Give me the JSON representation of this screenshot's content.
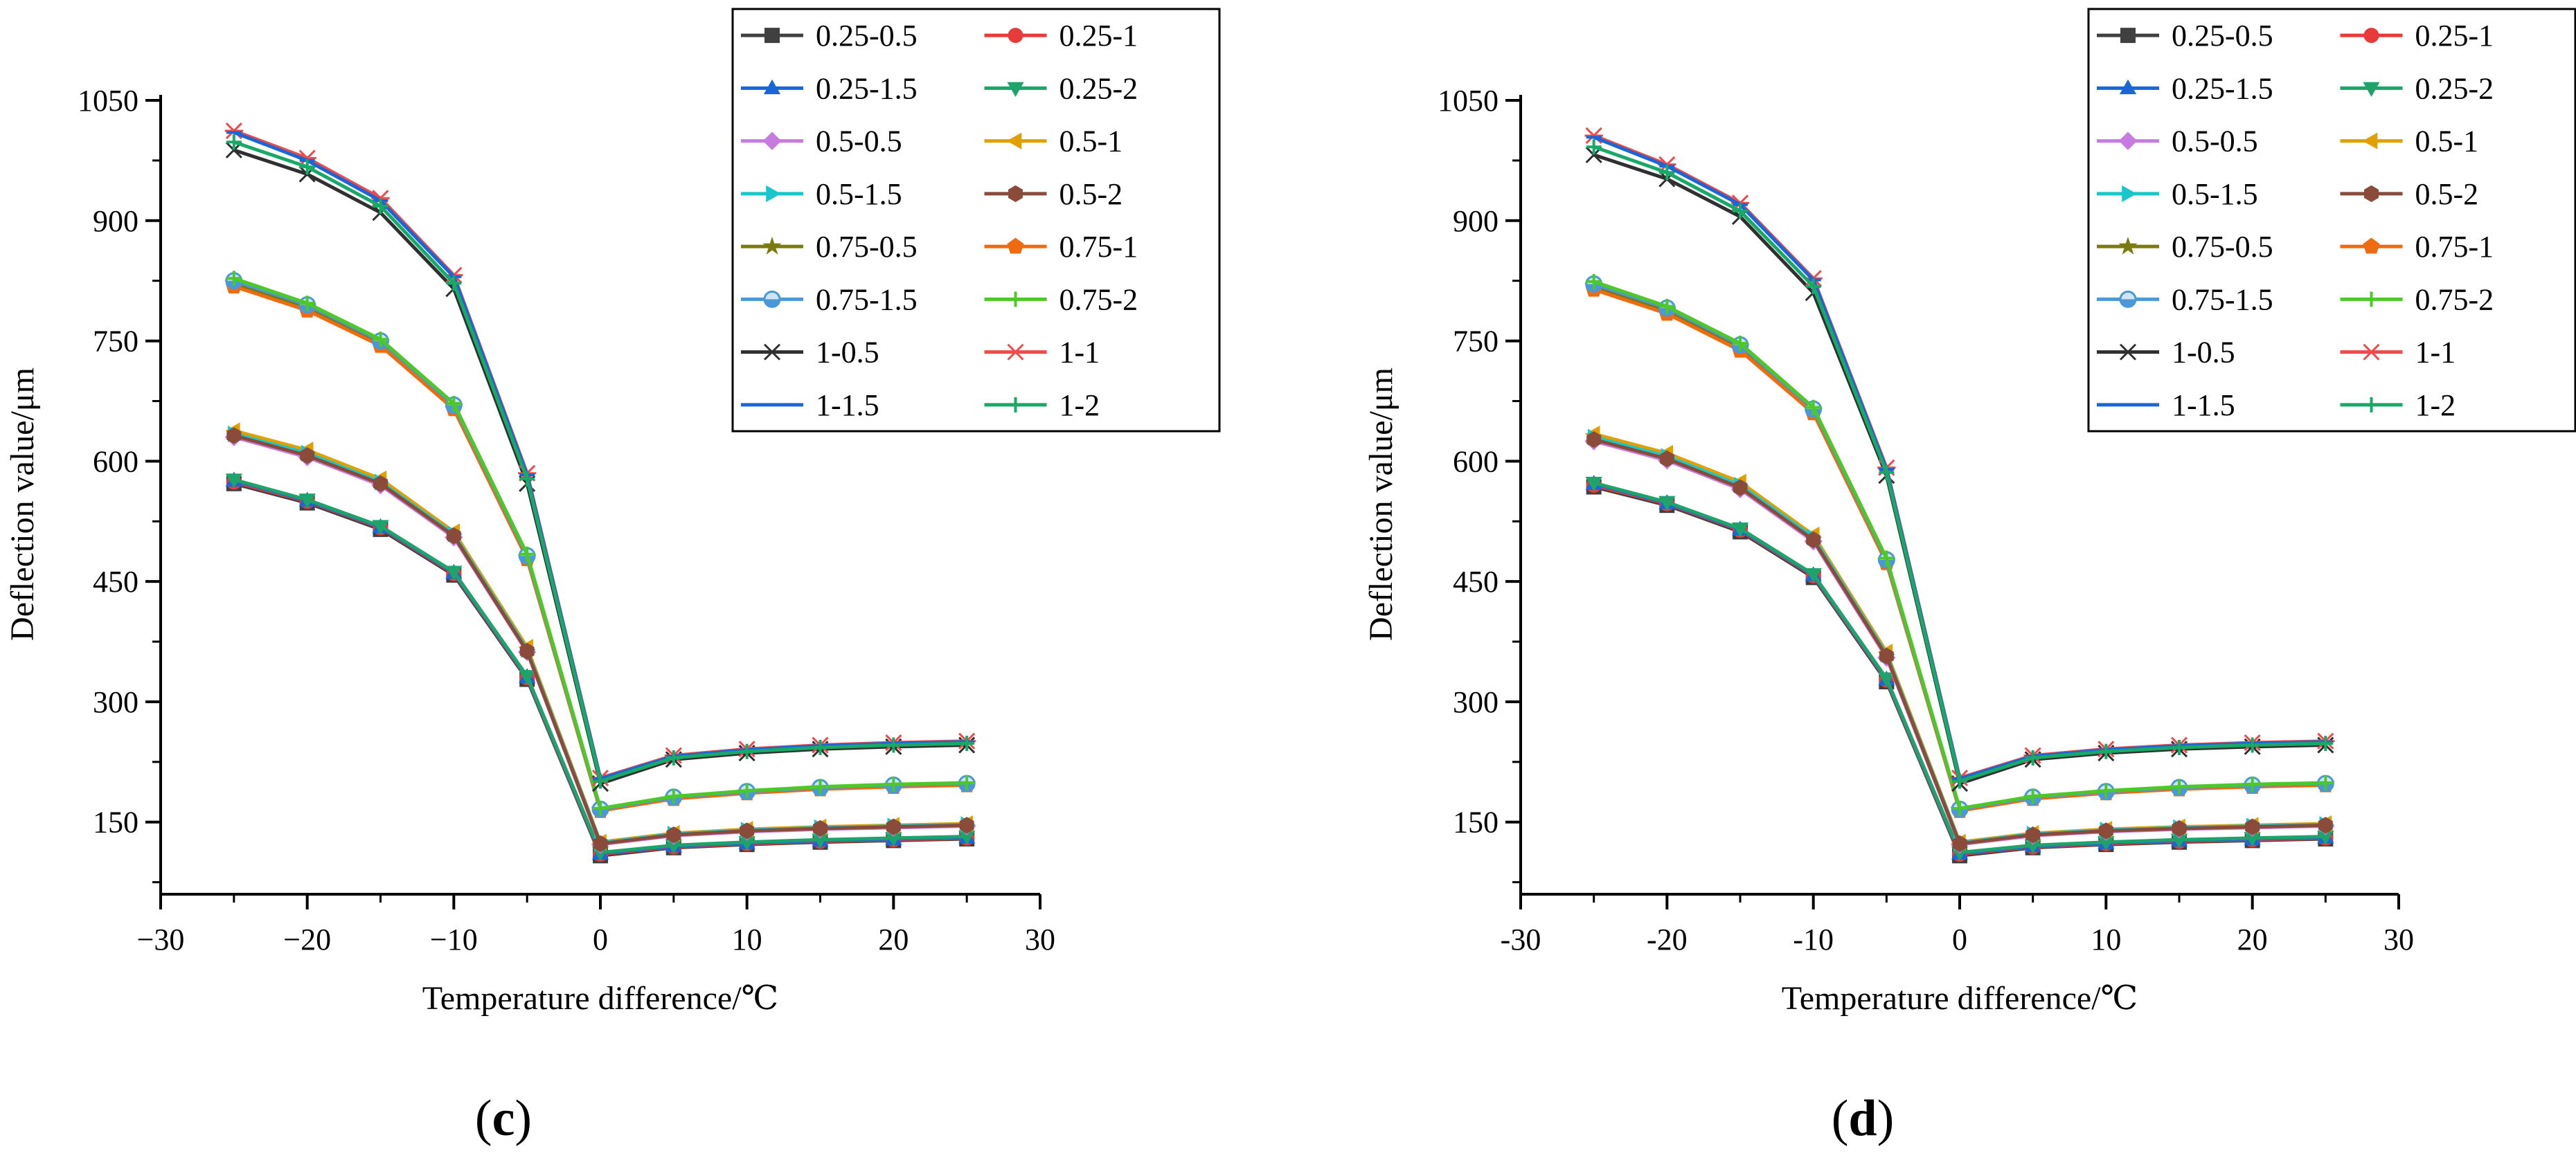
{
  "figure": {
    "panels": [
      "(c)",
      "(d)"
    ]
  },
  "styles": {
    "0.25-0.5": {
      "color": "#404040",
      "marker": "square"
    },
    "0.25-1": {
      "color": "#e8393b",
      "marker": "circle"
    },
    "0.25-1.5": {
      "color": "#1a66d8",
      "marker": "triangle-up"
    },
    "0.25-2": {
      "color": "#1ea36a",
      "marker": "triangle-down"
    },
    "0.5-0.5": {
      "color": "#c77be0",
      "marker": "diamond"
    },
    "0.5-1": {
      "color": "#e0a000",
      "marker": "triangle-left"
    },
    "0.5-1.5": {
      "color": "#18c6cc",
      "marker": "triangle-right"
    },
    "0.5-2": {
      "color": "#8b4b3a",
      "marker": "hexagon"
    },
    "0.75-0.5": {
      "color": "#7a7a10",
      "marker": "star"
    },
    "0.75-1": {
      "color": "#f06a10",
      "marker": "pentagon"
    },
    "0.75-1.5": {
      "color": "#4a98d8",
      "marker": "half-circle"
    },
    "0.75-2": {
      "color": "#4cc928",
      "marker": "plus"
    },
    "1-0.5": {
      "color": "#303030",
      "marker": "x"
    },
    "1-1": {
      "color": "#f04a4a",
      "marker": "asterisk"
    },
    "1-1.5": {
      "color": "#1a66d8",
      "marker": "dash"
    },
    "1-2": {
      "color": "#18a868",
      "marker": "plus"
    }
  },
  "chart_data": [
    {
      "type": "line",
      "panel_label": "(c)",
      "title": "",
      "xlabel": "Temperature difference/℃",
      "ylabel": "Deflection value/μm",
      "xlim": [
        -30,
        30
      ],
      "ylim": [
        60,
        1050
      ],
      "xticks": [
        -30,
        -20,
        -10,
        0,
        10,
        20,
        30
      ],
      "xtick_labels": [
        "−30",
        "−20",
        "−10",
        "0",
        "10",
        "20",
        "30"
      ],
      "yticks": [
        150,
        300,
        450,
        600,
        750,
        900,
        1050
      ],
      "ytick_labels": [
        "150",
        "300",
        "450",
        "600",
        "750",
        "900",
        "1050"
      ],
      "grid": false,
      "legend_position": "top-right",
      "x": [
        -25,
        -20,
        -15,
        -10,
        -5,
        0,
        5,
        10,
        15,
        20,
        25
      ],
      "series": [
        {
          "name": "0.25-0.5",
          "values": [
            572,
            548,
            515,
            458,
            328,
            108,
            118,
            122,
            125,
            127,
            129
          ]
        },
        {
          "name": "0.25-1",
          "values": [
            574,
            550,
            517,
            460,
            330,
            110,
            119,
            123,
            126,
            128,
            130
          ]
        },
        {
          "name": "0.25-1.5",
          "values": [
            576,
            551,
            518,
            461,
            331,
            111,
            120,
            124,
            127,
            129,
            131
          ]
        },
        {
          "name": "0.25-2",
          "values": [
            577,
            552,
            519,
            462,
            332,
            112,
            121,
            125,
            128,
            130,
            132
          ]
        },
        {
          "name": "0.5-0.5",
          "values": [
            630,
            605,
            570,
            505,
            362,
            122,
            133,
            138,
            141,
            143,
            145
          ]
        },
        {
          "name": "0.5-1",
          "values": [
            638,
            614,
            578,
            512,
            368,
            125,
            136,
            141,
            144,
            146,
            148
          ]
        },
        {
          "name": "0.5-1.5",
          "values": [
            634,
            610,
            574,
            509,
            365,
            124,
            135,
            140,
            143,
            145,
            147
          ]
        },
        {
          "name": "0.5-2",
          "values": [
            632,
            607,
            572,
            507,
            363,
            123,
            134,
            139,
            142,
            144,
            146
          ]
        },
        {
          "name": "0.75-0.5",
          "values": [
            822,
            792,
            748,
            668,
            480,
            165,
            180,
            187,
            192,
            195,
            197
          ]
        },
        {
          "name": "0.75-1",
          "values": [
            818,
            788,
            744,
            665,
            478,
            164,
            179,
            186,
            191,
            194,
            196
          ]
        },
        {
          "name": "0.75-1.5",
          "values": [
            825,
            795,
            750,
            670,
            482,
            166,
            181,
            188,
            193,
            196,
            198
          ]
        },
        {
          "name": "0.75-2",
          "values": [
            828,
            797,
            752,
            672,
            484,
            167,
            182,
            189,
            194,
            197,
            199
          ]
        },
        {
          "name": "1-0.5",
          "values": [
            988,
            958,
            910,
            815,
            572,
            198,
            228,
            236,
            241,
            244,
            246
          ]
        },
        {
          "name": "1-1",
          "values": [
            1012,
            978,
            928,
            832,
            585,
            205,
            233,
            241,
            246,
            249,
            251
          ]
        },
        {
          "name": "1-1.5",
          "values": [
            1010,
            975,
            925,
            830,
            583,
            204,
            232,
            240,
            245,
            248,
            250
          ]
        },
        {
          "name": "1-2",
          "values": [
            998,
            967,
            918,
            822,
            578,
            201,
            230,
            238,
            243,
            246,
            248
          ]
        }
      ]
    },
    {
      "type": "line",
      "panel_label": "(d)",
      "title": "",
      "xlabel": "Temperature difference/℃",
      "ylabel": "Deflection value/μm",
      "xlim": [
        -30,
        30
      ],
      "ylim": [
        60,
        1050
      ],
      "xticks": [
        -30,
        -20,
        -10,
        0,
        10,
        20,
        30
      ],
      "xtick_labels": [
        "-30",
        "-20",
        "-10",
        "0",
        "10",
        "20",
        "30"
      ],
      "yticks": [
        150,
        300,
        450,
        600,
        750,
        900,
        1050
      ],
      "ytick_labels": [
        "150",
        "300",
        "450",
        "600",
        "750",
        "900",
        "1050"
      ],
      "grid": false,
      "legend_position": "top-right",
      "x": [
        -25,
        -20,
        -15,
        -10,
        -5,
        0,
        5,
        10,
        15,
        20,
        25
      ],
      "series": [
        {
          "name": "0.25-0.5",
          "values": [
            568,
            545,
            512,
            455,
            325,
            108,
            118,
            122,
            125,
            127,
            129
          ]
        },
        {
          "name": "0.25-1",
          "values": [
            570,
            547,
            514,
            457,
            327,
            110,
            119,
            123,
            126,
            128,
            130
          ]
        },
        {
          "name": "0.25-1.5",
          "values": [
            572,
            548,
            515,
            458,
            328,
            111,
            120,
            124,
            127,
            129,
            131
          ]
        },
        {
          "name": "0.25-2",
          "values": [
            573,
            549,
            516,
            459,
            329,
            112,
            121,
            125,
            128,
            130,
            132
          ]
        },
        {
          "name": "0.5-0.5",
          "values": [
            625,
            601,
            565,
            500,
            355,
            122,
            133,
            138,
            141,
            143,
            145
          ]
        },
        {
          "name": "0.5-1",
          "values": [
            634,
            610,
            574,
            508,
            362,
            125,
            136,
            141,
            144,
            146,
            148
          ]
        },
        {
          "name": "0.5-1.5",
          "values": [
            630,
            606,
            570,
            505,
            359,
            124,
            135,
            140,
            143,
            145,
            147
          ]
        },
        {
          "name": "0.5-2",
          "values": [
            627,
            603,
            567,
            502,
            357,
            123,
            134,
            139,
            142,
            144,
            146
          ]
        },
        {
          "name": "0.75-0.5",
          "values": [
            818,
            788,
            742,
            663,
            475,
            165,
            180,
            187,
            192,
            195,
            197
          ]
        },
        {
          "name": "0.75-1",
          "values": [
            814,
            784,
            738,
            660,
            473,
            164,
            179,
            186,
            191,
            194,
            196
          ]
        },
        {
          "name": "0.75-1.5",
          "values": [
            821,
            791,
            745,
            665,
            477,
            166,
            181,
            188,
            193,
            196,
            198
          ]
        },
        {
          "name": "0.75-2",
          "values": [
            824,
            793,
            747,
            667,
            479,
            167,
            182,
            189,
            194,
            197,
            199
          ]
        },
        {
          "name": "1-0.5",
          "values": [
            982,
            952,
            905,
            810,
            582,
            198,
            228,
            236,
            241,
            244,
            246
          ]
        },
        {
          "name": "1-1",
          "values": [
            1006,
            970,
            922,
            828,
            592,
            205,
            233,
            241,
            246,
            249,
            251
          ]
        },
        {
          "name": "1-1.5",
          "values": [
            1004,
            968,
            920,
            826,
            590,
            204,
            232,
            240,
            245,
            248,
            250
          ]
        },
        {
          "name": "1-2",
          "values": [
            992,
            960,
            912,
            818,
            586,
            201,
            230,
            238,
            243,
            246,
            248
          ]
        }
      ]
    }
  ]
}
